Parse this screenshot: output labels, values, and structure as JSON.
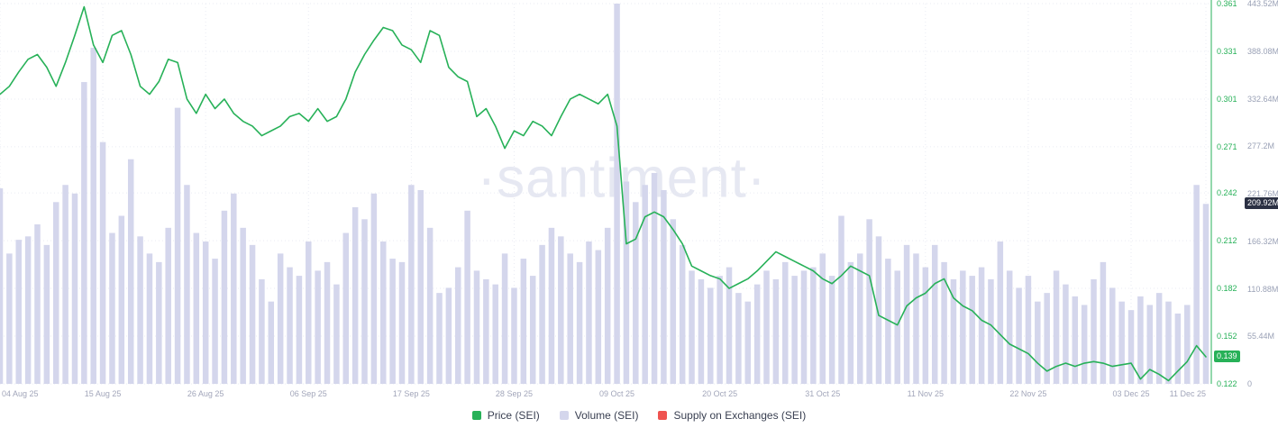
{
  "watermark": "·santiment·",
  "colors": {
    "price_green": "#27b158",
    "volume_lavender": "#d4d6ec",
    "supply_red": "#ef5350",
    "axis_text_gray": "#9aa1b6",
    "grid": "#e9ebf3",
    "watermark_gray": "#e6e8f2",
    "volume_badge_dark": "#2b3043",
    "background": "#ffffff"
  },
  "legend": [
    {
      "label": "Price (SEI)",
      "color": "#27b158"
    },
    {
      "label": "Volume (SEI)",
      "color": "#d4d6ec"
    },
    {
      "label": "Supply on Exchanges (SEI)",
      "color": "#ef5350"
    }
  ],
  "chart_data": {
    "type": "line",
    "combo": "price line over volume bars, dual right axes",
    "grid": "dotted",
    "x_axis": {
      "num_points": 130,
      "tick_labels": [
        "04 Aug 25",
        "15 Aug 25",
        "26 Aug 25",
        "06 Sep 25",
        "17 Sep 25",
        "28 Sep 25",
        "09 Oct 25",
        "20 Oct 25",
        "31 Oct 25",
        "11 Nov 25",
        "22 Nov 25",
        "03 Dec 25",
        "11 Dec 25"
      ],
      "tick_indices": [
        0,
        11,
        22,
        33,
        44,
        55,
        66,
        77,
        88,
        99,
        110,
        121,
        129
      ]
    },
    "price_axis": {
      "side": "right-inner",
      "color": "#27b158",
      "min": 0.122,
      "max": 0.361,
      "ticks": [
        "0.361",
        "0.331",
        "0.301",
        "0.271",
        "0.242",
        "0.212",
        "0.182",
        "0.152",
        "0.122"
      ],
      "current_badge": {
        "label": "0.139",
        "value": 0.139,
        "bg": "#27b158"
      }
    },
    "volume_axis": {
      "side": "right-outer",
      "color": "#9aa1b6",
      "min": 0,
      "max": 443.52,
      "unit": "M",
      "ticks": [
        "443.52M",
        "388.08M",
        "332.64M",
        "277.2M",
        "221.76M",
        "166.32M",
        "110.88M",
        "55.44M",
        "0"
      ],
      "current_badge": {
        "label": "209.92M",
        "value": 209.92,
        "bg": "#2b3043"
      }
    },
    "series": [
      {
        "name": "Price (SEI)",
        "type": "line",
        "axis": "price",
        "color": "#27b158",
        "values": [
          0.304,
          0.309,
          0.318,
          0.326,
          0.329,
          0.321,
          0.309,
          0.324,
          0.341,
          0.359,
          0.335,
          0.324,
          0.341,
          0.344,
          0.329,
          0.309,
          0.304,
          0.312,
          0.326,
          0.324,
          0.301,
          0.292,
          0.304,
          0.295,
          0.301,
          0.292,
          0.287,
          0.284,
          0.278,
          0.281,
          0.284,
          0.29,
          0.292,
          0.287,
          0.295,
          0.287,
          0.29,
          0.301,
          0.318,
          0.329,
          0.338,
          0.346,
          0.344,
          0.335,
          0.332,
          0.324,
          0.344,
          0.341,
          0.321,
          0.315,
          0.312,
          0.29,
          0.295,
          0.284,
          0.27,
          0.281,
          0.278,
          0.287,
          0.284,
          0.278,
          0.29,
          0.301,
          0.304,
          0.301,
          0.298,
          0.304,
          0.284,
          0.21,
          0.213,
          0.227,
          0.23,
          0.227,
          0.219,
          0.21,
          0.196,
          0.193,
          0.19,
          0.188,
          0.182,
          0.185,
          0.188,
          0.193,
          0.199,
          0.205,
          0.202,
          0.199,
          0.196,
          0.193,
          0.188,
          0.185,
          0.19,
          0.196,
          0.193,
          0.19,
          0.165,
          0.162,
          0.159,
          0.171,
          0.176,
          0.179,
          0.185,
          0.188,
          0.176,
          0.171,
          0.168,
          0.162,
          0.159,
          0.153,
          0.147,
          0.144,
          0.141,
          0.135,
          0.13,
          0.133,
          0.135,
          0.133,
          0.135,
          0.136,
          0.135,
          0.133,
          0.134,
          0.135,
          0.125,
          0.131,
          0.128,
          0.124,
          0.13,
          0.136,
          0.146,
          0.139
        ]
      },
      {
        "name": "Volume (SEI)",
        "type": "bar",
        "axis": "volume",
        "color": "#d4d6ec",
        "values": [
          228,
          152,
          168,
          172,
          186,
          162,
          212,
          232,
          222,
          352,
          392,
          282,
          176,
          196,
          262,
          172,
          152,
          142,
          182,
          322,
          232,
          176,
          166,
          146,
          202,
          222,
          182,
          162,
          122,
          96,
          152,
          136,
          126,
          166,
          132,
          142,
          116,
          176,
          206,
          192,
          222,
          166,
          146,
          142,
          232,
          226,
          182,
          106,
          112,
          136,
          202,
          132,
          122,
          116,
          152,
          112,
          146,
          126,
          162,
          182,
          172,
          152,
          142,
          166,
          156,
          182,
          443.5,
          236,
          212,
          232,
          246,
          226,
          192,
          162,
          132,
          122,
          112,
          126,
          136,
          106,
          96,
          116,
          132,
          122,
          142,
          126,
          132,
          136,
          152,
          126,
          196,
          142,
          152,
          192,
          172,
          146,
          132,
          162,
          152,
          136,
          162,
          142,
          122,
          132,
          126,
          136,
          122,
          166,
          132,
          112,
          126,
          96,
          106,
          132,
          116,
          102,
          92,
          122,
          142,
          112,
          96,
          86,
          102,
          92,
          106,
          96,
          82,
          92,
          232,
          209.92
        ]
      },
      {
        "name": "Supply on Exchanges (SEI)",
        "type": "line",
        "axis": "none",
        "color": "#ef5350",
        "values": []
      }
    ]
  }
}
